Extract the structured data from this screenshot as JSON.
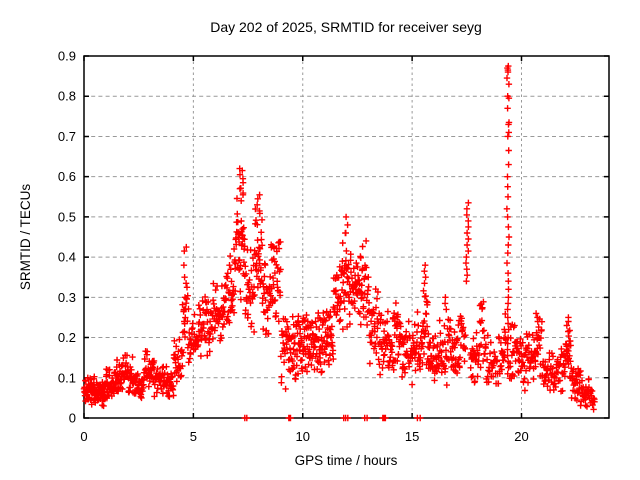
{
  "chart_data": {
    "type": "scatter",
    "title": "Day 202 of 2025, SRMTID for receiver seyg",
    "xlabel": "GPS time / hours",
    "ylabel": "SRMTID / TECUs",
    "series_name": "SRMTID",
    "xlim": [
      0,
      24
    ],
    "ylim": [
      0,
      0.9
    ],
    "x_ticks": [
      0,
      5,
      10,
      15,
      20
    ],
    "x_tick_labels": [
      "0",
      "5",
      "10",
      "15",
      "20"
    ],
    "y_ticks": [
      0,
      0.1,
      0.2,
      0.3,
      0.4,
      0.5,
      0.6,
      0.7,
      0.8,
      0.9
    ],
    "y_tick_labels": [
      "0",
      "0.1",
      "0.2",
      "0.3",
      "0.4",
      "0.5",
      "0.6",
      "0.7",
      "0.8",
      "0.9"
    ],
    "grid": true,
    "legend_position": "none",
    "marker": "plus",
    "marker_color": "#ff0000",
    "grid_color": "#999999",
    "axis_color": "#000000",
    "background_color": "#ffffff",
    "prng_seed": 1337,
    "envelope_segments": [
      [
        0.0,
        0.5,
        48,
        0.03,
        0.115
      ],
      [
        0.5,
        1.0,
        48,
        0.025,
        0.105
      ],
      [
        1.0,
        1.5,
        45,
        0.04,
        0.135
      ],
      [
        1.5,
        2.0,
        45,
        0.05,
        0.17
      ],
      [
        2.0,
        2.35,
        28,
        0.05,
        0.155
      ],
      [
        2.35,
        2.75,
        30,
        0.03,
        0.12
      ],
      [
        2.75,
        3.2,
        34,
        0.06,
        0.18
      ],
      [
        3.2,
        3.65,
        30,
        0.05,
        0.145
      ],
      [
        3.65,
        4.1,
        32,
        0.045,
        0.135
      ],
      [
        4.1,
        4.5,
        28,
        0.08,
        0.2
      ],
      [
        4.5,
        4.78,
        18,
        0.14,
        0.34
      ],
      [
        4.78,
        5.2,
        30,
        0.12,
        0.26
      ],
      [
        5.2,
        5.8,
        42,
        0.15,
        0.32
      ],
      [
        5.8,
        6.4,
        42,
        0.17,
        0.36
      ],
      [
        6.4,
        6.9,
        38,
        0.2,
        0.44
      ],
      [
        6.9,
        7.35,
        40,
        0.26,
        0.6
      ],
      [
        7.35,
        7.8,
        34,
        0.2,
        0.46
      ],
      [
        7.8,
        8.15,
        30,
        0.27,
        0.55
      ],
      [
        8.15,
        8.55,
        30,
        0.17,
        0.42
      ],
      [
        8.55,
        9.0,
        34,
        0.21,
        0.47
      ],
      [
        9.0,
        9.5,
        36,
        0.05,
        0.3
      ],
      [
        9.5,
        10.0,
        42,
        0.08,
        0.28
      ],
      [
        10.0,
        10.5,
        42,
        0.1,
        0.285
      ],
      [
        10.5,
        11.0,
        42,
        0.1,
        0.28
      ],
      [
        11.0,
        11.4,
        32,
        0.12,
        0.3
      ],
      [
        11.4,
        11.8,
        30,
        0.17,
        0.4
      ],
      [
        11.8,
        12.2,
        34,
        0.21,
        0.465
      ],
      [
        12.2,
        12.6,
        30,
        0.24,
        0.43
      ],
      [
        12.6,
        13.0,
        30,
        0.2,
        0.46
      ],
      [
        13.0,
        13.5,
        36,
        0.12,
        0.35
      ],
      [
        13.5,
        14.0,
        36,
        0.1,
        0.28
      ],
      [
        14.0,
        14.5,
        36,
        0.095,
        0.3
      ],
      [
        14.5,
        15.0,
        36,
        0.08,
        0.25
      ],
      [
        15.0,
        15.5,
        36,
        0.08,
        0.27
      ],
      [
        15.5,
        15.75,
        20,
        0.1,
        0.37
      ],
      [
        15.75,
        16.25,
        36,
        0.075,
        0.22
      ],
      [
        16.25,
        16.75,
        32,
        0.08,
        0.27
      ],
      [
        16.75,
        17.2,
        30,
        0.08,
        0.25
      ],
      [
        17.2,
        17.45,
        16,
        0.1,
        0.3
      ],
      [
        17.65,
        18.1,
        30,
        0.08,
        0.25
      ],
      [
        18.1,
        18.35,
        16,
        0.11,
        0.31
      ],
      [
        18.35,
        19.2,
        48,
        0.065,
        0.22
      ],
      [
        19.2,
        19.3,
        8,
        0.1,
        0.28
      ],
      [
        19.45,
        20.0,
        36,
        0.08,
        0.27
      ],
      [
        20.0,
        20.55,
        36,
        0.06,
        0.23
      ],
      [
        20.55,
        20.95,
        28,
        0.07,
        0.26
      ],
      [
        20.95,
        21.6,
        38,
        0.05,
        0.18
      ],
      [
        21.6,
        22.0,
        26,
        0.06,
        0.2
      ],
      [
        22.0,
        22.25,
        26,
        0.08,
        0.25
      ],
      [
        22.25,
        22.7,
        30,
        0.04,
        0.135
      ],
      [
        22.7,
        23.1,
        30,
        0.025,
        0.1
      ],
      [
        23.1,
        23.35,
        14,
        0.02,
        0.08
      ]
    ],
    "spike_columns": [
      {
        "x": 4.62,
        "jitter": 0.06,
        "ys": [
          0.425,
          0.415,
          0.38,
          0.35,
          0.335,
          0.3,
          0.27,
          0.24
        ]
      },
      {
        "x": 7.2,
        "jitter": 0.1,
        "ys": [
          0.62,
          0.615,
          0.605,
          0.595,
          0.585,
          0.57,
          0.555,
          0.54
        ]
      },
      {
        "x": 8.0,
        "jitter": 0.09,
        "ys": [
          0.555,
          0.545,
          0.53,
          0.515
        ]
      },
      {
        "x": 12.0,
        "jitter": 0.08,
        "ys": [
          0.5,
          0.48,
          0.46
        ]
      },
      {
        "x": 15.6,
        "jitter": 0.05,
        "ys": [
          0.38,
          0.365,
          0.35,
          0.335
        ]
      },
      {
        "x": 16.55,
        "jitter": 0.05,
        "ys": [
          0.3,
          0.285,
          0.27
        ]
      },
      {
        "x": 17.52,
        "jitter": 0.06,
        "ys": [
          0.535,
          0.52,
          0.505,
          0.49,
          0.475,
          0.46,
          0.445,
          0.43,
          0.415,
          0.4,
          0.385,
          0.37,
          0.355,
          0.34
        ]
      },
      {
        "x": 19.38,
        "jitter": 0.05,
        "ys": [
          0.875,
          0.87,
          0.865,
          0.86,
          0.845,
          0.83,
          0.8,
          0.795,
          0.77,
          0.735,
          0.73,
          0.71,
          0.7,
          0.665,
          0.63,
          0.6,
          0.575,
          0.55,
          0.52,
          0.5,
          0.475,
          0.45,
          0.43,
          0.41,
          0.385,
          0.36,
          0.34,
          0.32,
          0.3,
          0.285,
          0.27,
          0.25,
          0.235,
          0.22,
          0.2,
          0.185,
          0.17,
          0.155,
          0.14,
          0.125,
          0.11
        ]
      },
      {
        "x": 20.7,
        "jitter": 0.05,
        "ys": [
          0.26,
          0.25,
          0.24
        ]
      },
      {
        "x": 22.12,
        "jitter": 0.06,
        "ys": [
          0.25,
          0.24,
          0.23,
          0.215
        ]
      }
    ],
    "zero_points_x": [
      7.35,
      7.44,
      9.36,
      9.4,
      9.44,
      11.87,
      11.96,
      12.06,
      12.83,
      12.94,
      13.66,
      13.7,
      13.74,
      13.78,
      15.24,
      15.37
    ]
  }
}
